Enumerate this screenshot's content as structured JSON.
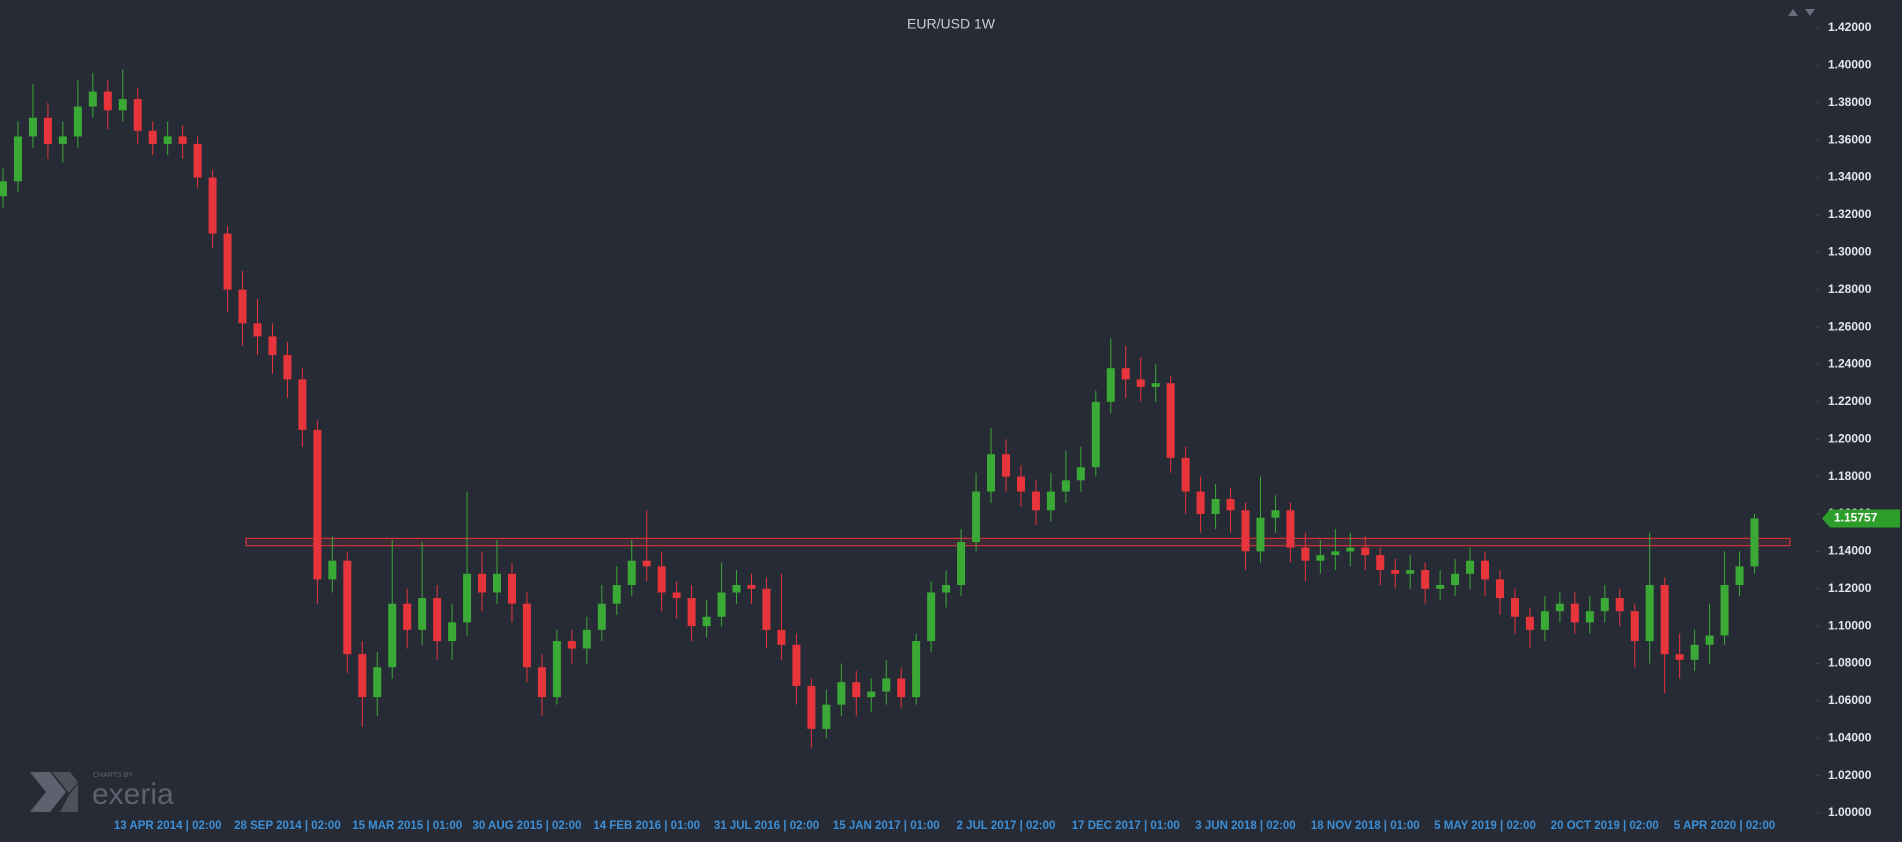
{
  "chart_data": {
    "type": "candlestick",
    "title": "EUR/USD 1W",
    "categories": [
      null,
      null,
      null,
      null,
      null,
      null,
      null,
      null,
      null,
      null,
      null,
      "13 APR 2014 | 02:00",
      null,
      null,
      null,
      null,
      null,
      null,
      null,
      "28 SEP 2014 | 02:00",
      null,
      null,
      null,
      null,
      null,
      null,
      null,
      "15 MAR 2015 | 01:00",
      null,
      null,
      null,
      null,
      null,
      null,
      null,
      "30 AUG 2015 | 02:00",
      null,
      null,
      null,
      null,
      null,
      null,
      null,
      "14 FEB 2016 | 01:00",
      null,
      null,
      null,
      null,
      null,
      null,
      null,
      "31 JUL 2016 | 02:00",
      null,
      null,
      null,
      null,
      null,
      null,
      null,
      "15 JAN 2017 | 01:00",
      null,
      null,
      null,
      null,
      null,
      null,
      null,
      "2 JUL 2017 | 02:00",
      null,
      null,
      null,
      null,
      null,
      null,
      null,
      "17 DEC 2017 | 01:00",
      null,
      null,
      null,
      null,
      null,
      null,
      null,
      "3 JUN 2018 | 02:00",
      null,
      null,
      null,
      null,
      null,
      null,
      null,
      "18 NOV 2018 | 01:00",
      null,
      null,
      null,
      null,
      null,
      null,
      null,
      "5 MAY 2019 | 02:00",
      null,
      null,
      null,
      null,
      null,
      null,
      null,
      "20 OCT 2019 | 02:00",
      null,
      null,
      null,
      null,
      null,
      null,
      null,
      "5 APR 2020 | 02:00",
      null,
      null
    ],
    "open": [
      1.33,
      1.338,
      1.362,
      1.372,
      1.358,
      1.362,
      1.378,
      1.386,
      1.376,
      1.382,
      1.365,
      1.358,
      1.362,
      1.358,
      1.34,
      1.31,
      1.28,
      1.262,
      1.255,
      1.245,
      1.232,
      1.205,
      1.125,
      1.135,
      1.085,
      1.062,
      1.078,
      1.112,
      1.098,
      1.115,
      1.092,
      1.102,
      1.128,
      1.118,
      1.128,
      1.112,
      1.078,
      1.062,
      1.092,
      1.088,
      1.098,
      1.112,
      1.122,
      1.135,
      1.132,
      1.118,
      1.115,
      1.1,
      1.105,
      1.118,
      1.122,
      1.12,
      1.098,
      1.09,
      1.068,
      1.045,
      1.058,
      1.07,
      1.062,
      1.065,
      1.072,
      1.062,
      1.092,
      1.118,
      1.122,
      1.145,
      1.172,
      1.192,
      1.18,
      1.172,
      1.162,
      1.172,
      1.178,
      1.185,
      1.22,
      1.238,
      1.232,
      1.228,
      1.23,
      1.19,
      1.172,
      1.16,
      1.168,
      1.162,
      1.14,
      1.158,
      1.162,
      1.142,
      1.135,
      1.138,
      1.14,
      1.142,
      1.138,
      1.13,
      1.128,
      1.13,
      1.12,
      1.122,
      1.128,
      1.135,
      1.125,
      1.115,
      1.105,
      1.098,
      1.108,
      1.112,
      1.102,
      1.108,
      1.115,
      1.108,
      1.092,
      1.122,
      1.085,
      1.082,
      1.09,
      1.095,
      1.122,
      1.132
    ],
    "high": [
      1.345,
      1.37,
      1.39,
      1.38,
      1.37,
      1.392,
      1.396,
      1.392,
      1.398,
      1.388,
      1.37,
      1.37,
      1.368,
      1.362,
      1.344,
      1.314,
      1.29,
      1.275,
      1.262,
      1.252,
      1.238,
      1.21,
      1.148,
      1.14,
      1.092,
      1.086,
      1.146,
      1.12,
      1.145,
      1.122,
      1.112,
      1.172,
      1.14,
      1.146,
      1.134,
      1.118,
      1.085,
      1.098,
      1.098,
      1.105,
      1.122,
      1.132,
      1.146,
      1.162,
      1.14,
      1.124,
      1.122,
      1.114,
      1.134,
      1.13,
      1.128,
      1.126,
      1.128,
      1.096,
      1.072,
      1.066,
      1.08,
      1.076,
      1.072,
      1.082,
      1.078,
      1.096,
      1.124,
      1.13,
      1.152,
      1.182,
      1.206,
      1.2,
      1.186,
      1.178,
      1.182,
      1.194,
      1.196,
      1.226,
      1.254,
      1.25,
      1.244,
      1.24,
      1.234,
      1.196,
      1.18,
      1.176,
      1.174,
      1.166,
      1.18,
      1.17,
      1.166,
      1.15,
      1.146,
      1.152,
      1.15,
      1.148,
      1.142,
      1.136,
      1.138,
      1.134,
      1.13,
      1.136,
      1.142,
      1.14,
      1.13,
      1.12,
      1.11,
      1.116,
      1.118,
      1.118,
      1.116,
      1.122,
      1.12,
      1.112,
      1.15,
      1.126,
      1.096,
      1.098,
      1.112,
      1.14,
      1.14,
      1.16
    ],
    "low": [
      1.324,
      1.332,
      1.356,
      1.35,
      1.348,
      1.356,
      1.372,
      1.366,
      1.37,
      1.358,
      1.352,
      1.352,
      1.35,
      1.334,
      1.302,
      1.268,
      1.25,
      1.245,
      1.235,
      1.222,
      1.196,
      1.112,
      1.118,
      1.075,
      1.046,
      1.052,
      1.072,
      1.088,
      1.09,
      1.082,
      1.082,
      1.095,
      1.108,
      1.112,
      1.102,
      1.07,
      1.052,
      1.058,
      1.08,
      1.08,
      1.092,
      1.106,
      1.116,
      1.124,
      1.108,
      1.104,
      1.092,
      1.094,
      1.1,
      1.112,
      1.112,
      1.088,
      1.082,
      1.058,
      1.035,
      1.04,
      1.052,
      1.052,
      1.054,
      1.058,
      1.056,
      1.058,
      1.086,
      1.11,
      1.116,
      1.14,
      1.166,
      1.172,
      1.164,
      1.154,
      1.156,
      1.166,
      1.172,
      1.18,
      1.214,
      1.222,
      1.22,
      1.22,
      1.182,
      1.16,
      1.15,
      1.152,
      1.15,
      1.13,
      1.134,
      1.15,
      1.134,
      1.124,
      1.128,
      1.13,
      1.132,
      1.13,
      1.122,
      1.12,
      1.12,
      1.112,
      1.114,
      1.116,
      1.12,
      1.116,
      1.106,
      1.096,
      1.088,
      1.092,
      1.102,
      1.096,
      1.096,
      1.102,
      1.1,
      1.078,
      1.08,
      1.064,
      1.072,
      1.076,
      1.08,
      1.09,
      1.116,
      1.128
    ],
    "close": [
      1.338,
      1.362,
      1.372,
      1.358,
      1.362,
      1.378,
      1.386,
      1.376,
      1.382,
      1.365,
      1.358,
      1.362,
      1.358,
      1.34,
      1.31,
      1.28,
      1.262,
      1.255,
      1.245,
      1.232,
      1.205,
      1.125,
      1.135,
      1.085,
      1.062,
      1.078,
      1.112,
      1.098,
      1.115,
      1.092,
      1.102,
      1.128,
      1.118,
      1.128,
      1.112,
      1.078,
      1.062,
      1.092,
      1.088,
      1.098,
      1.112,
      1.122,
      1.135,
      1.132,
      1.118,
      1.115,
      1.1,
      1.105,
      1.118,
      1.122,
      1.12,
      1.098,
      1.09,
      1.068,
      1.045,
      1.058,
      1.07,
      1.062,
      1.065,
      1.072,
      1.062,
      1.092,
      1.118,
      1.122,
      1.145,
      1.172,
      1.192,
      1.18,
      1.172,
      1.162,
      1.172,
      1.178,
      1.185,
      1.22,
      1.238,
      1.232,
      1.228,
      1.23,
      1.19,
      1.172,
      1.16,
      1.168,
      1.162,
      1.14,
      1.158,
      1.162,
      1.142,
      1.135,
      1.138,
      1.14,
      1.142,
      1.138,
      1.13,
      1.128,
      1.13,
      1.12,
      1.122,
      1.128,
      1.135,
      1.125,
      1.115,
      1.105,
      1.098,
      1.108,
      1.112,
      1.102,
      1.108,
      1.115,
      1.108,
      1.092,
      1.122,
      1.085,
      1.082,
      1.09,
      1.095,
      1.122,
      1.132,
      1.15757
    ],
    "up_color": "#3ba935",
    "down_color": "#e8343b",
    "ylim": [
      0.9845,
      1.435
    ],
    "yticks": [
      {
        "value": 1.0,
        "label": "1.00000"
      },
      {
        "value": 1.02,
        "label": "1.02000"
      },
      {
        "value": 1.04,
        "label": "1.04000"
      },
      {
        "value": 1.06,
        "label": "1.06000"
      },
      {
        "value": 1.08,
        "label": "1.08000"
      },
      {
        "value": 1.1,
        "label": "1.10000"
      },
      {
        "value": 1.12,
        "label": "1.12000"
      },
      {
        "value": 1.14,
        "label": "1.14000"
      },
      {
        "value": 1.16,
        "label": "1.16000"
      },
      {
        "value": 1.18,
        "label": "1.18000"
      },
      {
        "value": 1.2,
        "label": "1.20000"
      },
      {
        "value": 1.22,
        "label": "1.22000"
      },
      {
        "value": 1.24,
        "label": "1.24000"
      },
      {
        "value": 1.26,
        "label": "1.26000"
      },
      {
        "value": 1.28,
        "label": "1.28000"
      },
      {
        "value": 1.3,
        "label": "1.30000"
      },
      {
        "value": 1.32,
        "label": "1.32000"
      },
      {
        "value": 1.34,
        "label": "1.34000"
      },
      {
        "value": 1.36,
        "label": "1.36000"
      },
      {
        "value": 1.38,
        "label": "1.38000"
      },
      {
        "value": 1.4,
        "label": "1.40000"
      },
      {
        "value": 1.42,
        "label": "1.42000"
      }
    ],
    "zone": [
      1.143,
      1.147
    ],
    "zone_color": "#e8343b",
    "last_price": 1.15757,
    "last_price_color": "#2e9e2a"
  },
  "branding": {
    "caption": "CHARTS BY",
    "name": "exeria"
  }
}
